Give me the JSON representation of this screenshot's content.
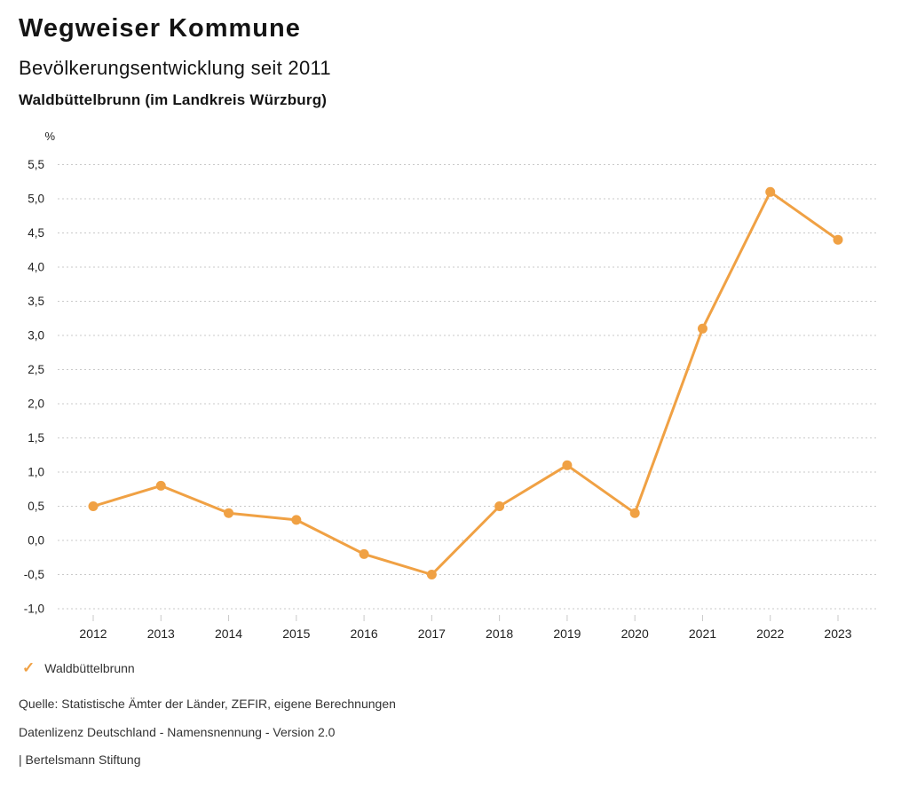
{
  "header": {
    "title": "Wegweiser Kommune",
    "subtitle": "Bevölkerungsentwicklung seit 2011",
    "municipality": "Waldbüttelbrunn (im Landkreis Würzburg)"
  },
  "chart_data": {
    "type": "line",
    "title": "Bevölkerungsentwicklung seit 2011",
    "subtitle": "Waldbüttelbrunn (im Landkreis Würzburg)",
    "unit_label": "%",
    "categories": [
      "2012",
      "2013",
      "2014",
      "2015",
      "2016",
      "2017",
      "2018",
      "2019",
      "2020",
      "2021",
      "2022",
      "2023"
    ],
    "series": [
      {
        "name": "Waldbüttelbrunn",
        "color": "#F0A144",
        "values": [
          0.5,
          0.8,
          0.4,
          0.3,
          -0.2,
          -0.5,
          0.5,
          1.1,
          0.4,
          3.1,
          5.1,
          4.4
        ]
      }
    ],
    "ylim": [
      -1.0,
      5.5
    ],
    "ytick_step": 0.5,
    "ytick_labels": [
      "5,5",
      "5,0",
      "4,5",
      "4,0",
      "3,5",
      "3,0",
      "2,5",
      "2,0",
      "1,5",
      "1,0",
      "0,5",
      "0,0",
      "-0,5",
      "-1,0"
    ],
    "grid": "horizontal-dotted",
    "gridline_color": "#c9c9c9",
    "axis_label_color": "#222222",
    "legend_position": "bottom-left"
  },
  "legend": {
    "check_icon": "✓",
    "label": "Waldbüttelbrunn",
    "color": "#F0A144"
  },
  "footer": {
    "source": "Quelle: Statistische Ämter der Länder, ZEFIR, eigene Berechnungen",
    "license": "Datenlizenz Deutschland - Namensnennung - Version 2.0",
    "attribution": "| Bertelsmann Stiftung"
  }
}
